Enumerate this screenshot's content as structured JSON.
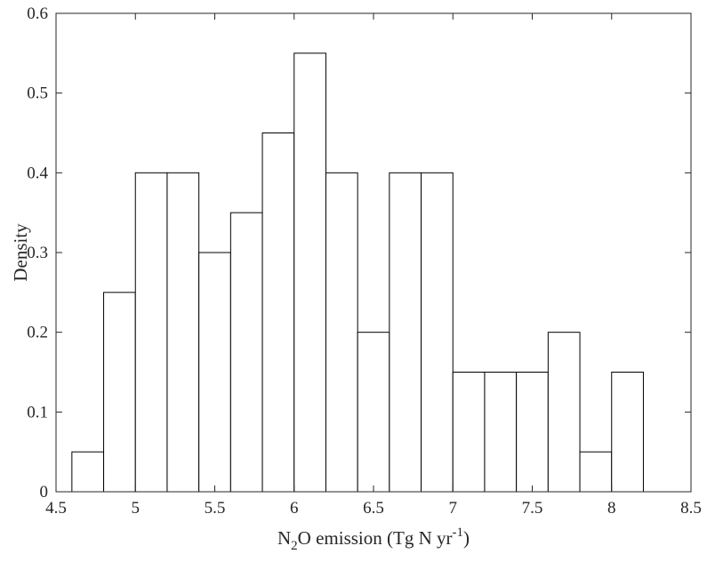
{
  "chart_data": {
    "type": "bar",
    "subtype": "histogram",
    "title": "",
    "xlabel": {
      "main_pre": "N",
      "subscript": "2",
      "main_mid": "O emission (Tg N yr",
      "superscript": "-1",
      "main_post": ")"
    },
    "ylabel": "Density",
    "xlim": [
      4.5,
      8.5
    ],
    "ylim": [
      0,
      0.6
    ],
    "bin_edges": [
      4.6,
      4.8,
      5.0,
      5.2,
      5.4,
      5.6,
      5.8,
      6.0,
      6.2,
      6.4,
      6.6,
      6.8,
      7.0,
      7.2,
      7.4,
      7.6,
      7.8,
      8.0,
      8.2,
      8.4
    ],
    "values": [
      0.05,
      0.25,
      0.4,
      0.4,
      0.3,
      0.35,
      0.45,
      0.55,
      0.4,
      0.2,
      0.4,
      0.4,
      0.15,
      0.15,
      0.15,
      0.2,
      0.05,
      0.15,
      0.0
    ],
    "x_ticks": [
      "4.5",
      "5",
      "5.5",
      "6",
      "6.5",
      "7",
      "7.5",
      "8",
      "8.5"
    ],
    "y_ticks": [
      "0",
      "0.1",
      "0.2",
      "0.3",
      "0.4",
      "0.5",
      "0.6"
    ],
    "grid": false,
    "legend": "none",
    "colors": {
      "bar_fill": "#ffffff",
      "bar_edge": "#000000",
      "axis": "#262626"
    }
  }
}
